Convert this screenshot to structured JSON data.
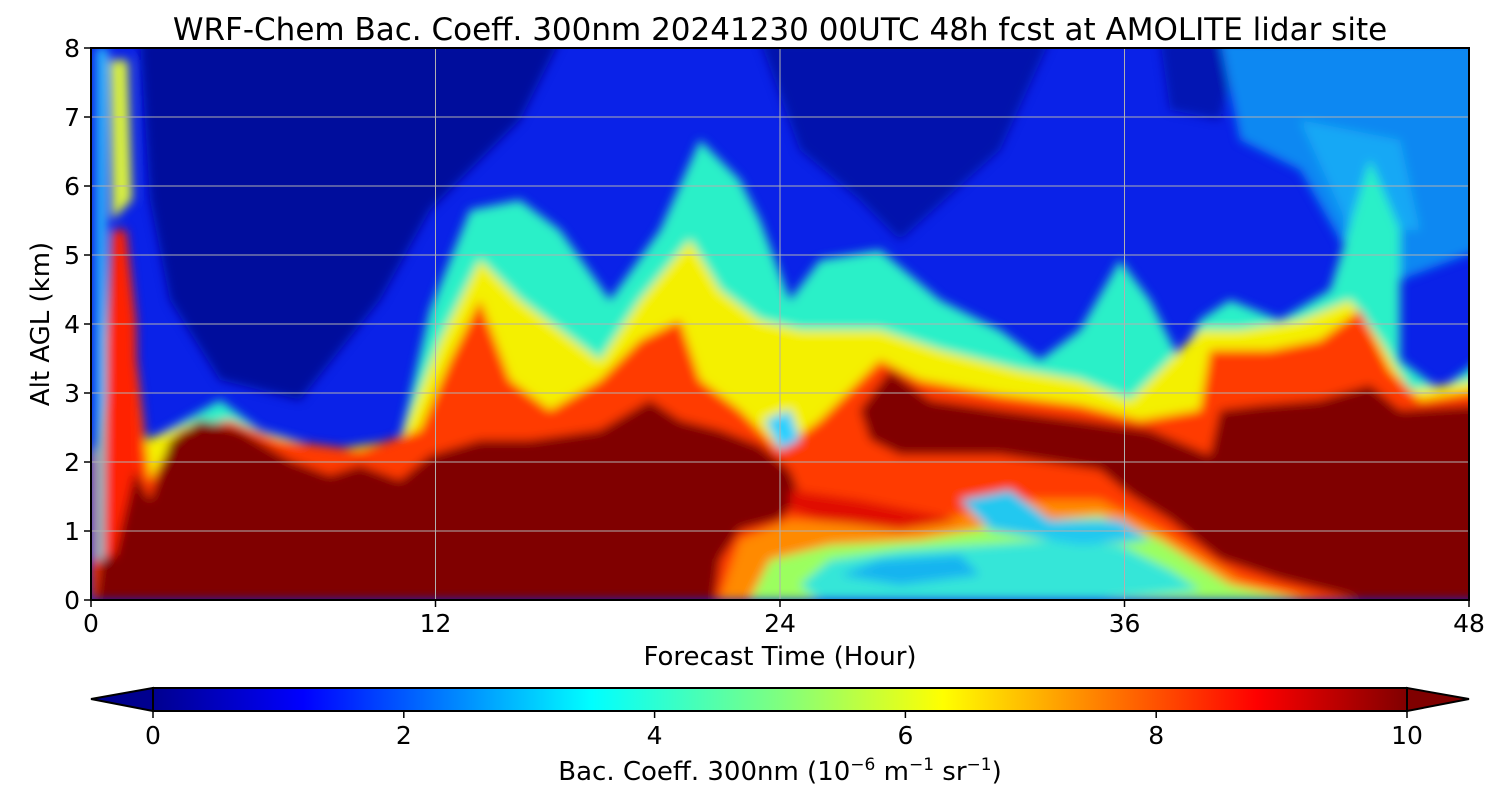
{
  "chart_data": {
    "type": "heatmap",
    "title": "WRF-Chem Bac. Coeff. 300nm  20241230 00UTC 48h fcst at AMOLITE lidar site",
    "xlabel": "Forecast Time (Hour)",
    "ylabel": "Alt AGL (km)",
    "xlim": [
      0,
      48
    ],
    "ylim": [
      0,
      8
    ],
    "xticks": [
      0,
      12,
      24,
      36,
      48
    ],
    "yticks": [
      0,
      1,
      2,
      3,
      4,
      5,
      6,
      7,
      8
    ],
    "grid": true,
    "colormap": "jet",
    "colorbar": {
      "label_main": "Bac. Coeff. 300nm  (10",
      "label_exp1": "−6",
      "label_unit1": " m",
      "label_exp2": "−1",
      "label_unit2": " sr",
      "label_exp3": "−1",
      "label_close": ")",
      "min": 0,
      "max": 10,
      "ticks": [
        0,
        2,
        4,
        6,
        8,
        10
      ],
      "extend": "both",
      "orientation": "horizontal"
    },
    "approx_features": {
      "boundary_layer_saturated_top_km": [
        {
          "hour": 0,
          "alt": 0.0
        },
        {
          "hour": 1,
          "alt": 0.6
        },
        {
          "hour": 3,
          "alt": 2.4
        },
        {
          "hour": 7,
          "alt": 2.0
        },
        {
          "hour": 12,
          "alt": 2.1
        },
        {
          "hour": 20,
          "alt": 2.7
        },
        {
          "hour": 24,
          "alt": 2.0
        },
        {
          "hour": 28,
          "alt": 3.2
        },
        {
          "hour": 32,
          "alt": 2.8
        },
        {
          "hour": 38,
          "alt": 2.6
        },
        {
          "hour": 40,
          "alt": 3.0
        },
        {
          "hour": 44,
          "alt": 3.0
        },
        {
          "hour": 48,
          "alt": 2.6
        }
      ],
      "early_plume_peak_km": 5.4,
      "low_level_minimum_hours": [
        22,
        44
      ]
    }
  }
}
